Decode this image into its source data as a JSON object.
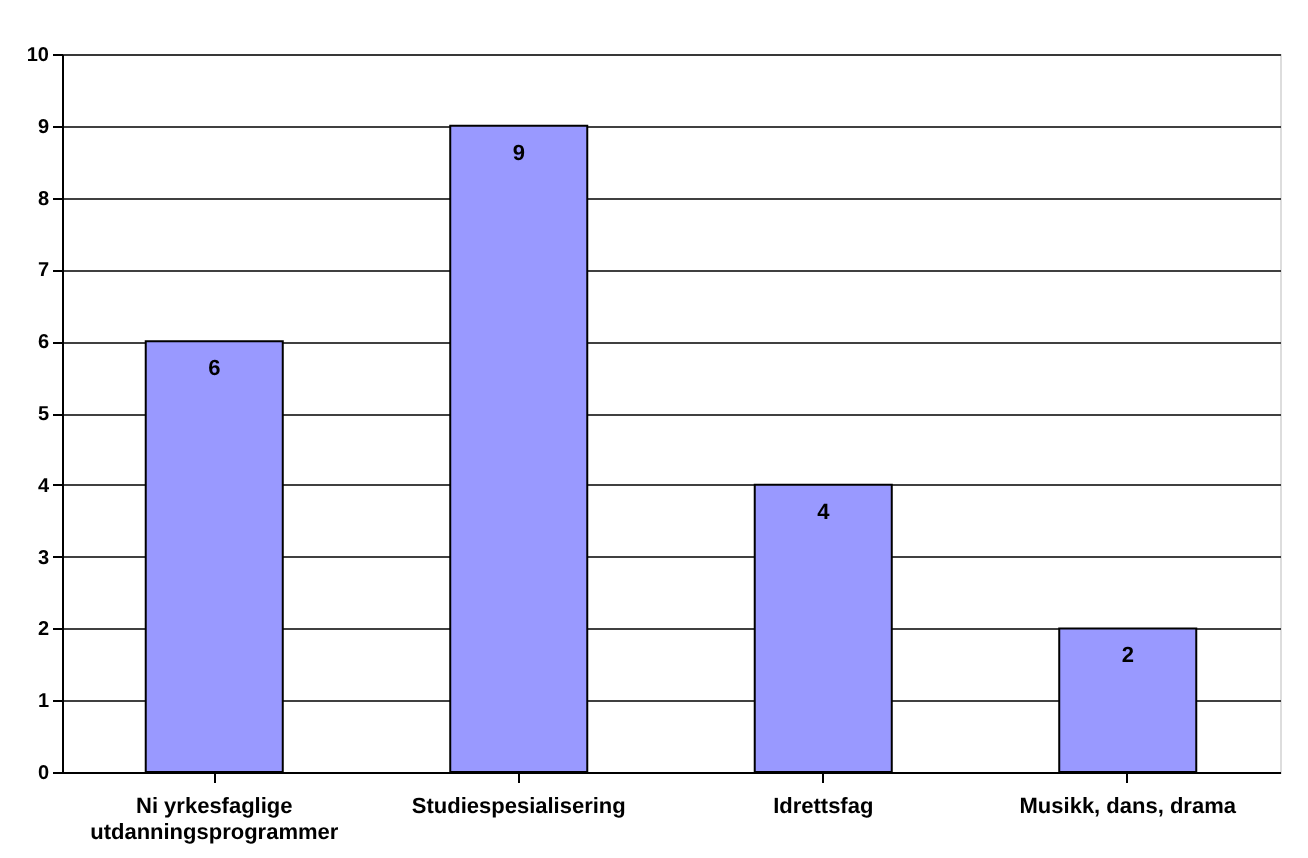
{
  "chart_data": {
    "type": "bar",
    "categories": [
      "Ni yrkesfaglige utdanningsprogrammer",
      "Studiespesialisering",
      "Idrettsfag",
      "Musikk, dans, drama"
    ],
    "values": [
      6,
      9,
      4,
      2
    ],
    "color": "#9999ff",
    "ylim": [
      0,
      10
    ],
    "yticks": [
      0,
      1,
      2,
      3,
      4,
      5,
      6,
      7,
      8,
      9,
      10
    ],
    "grid": "y",
    "data_labels": true
  }
}
